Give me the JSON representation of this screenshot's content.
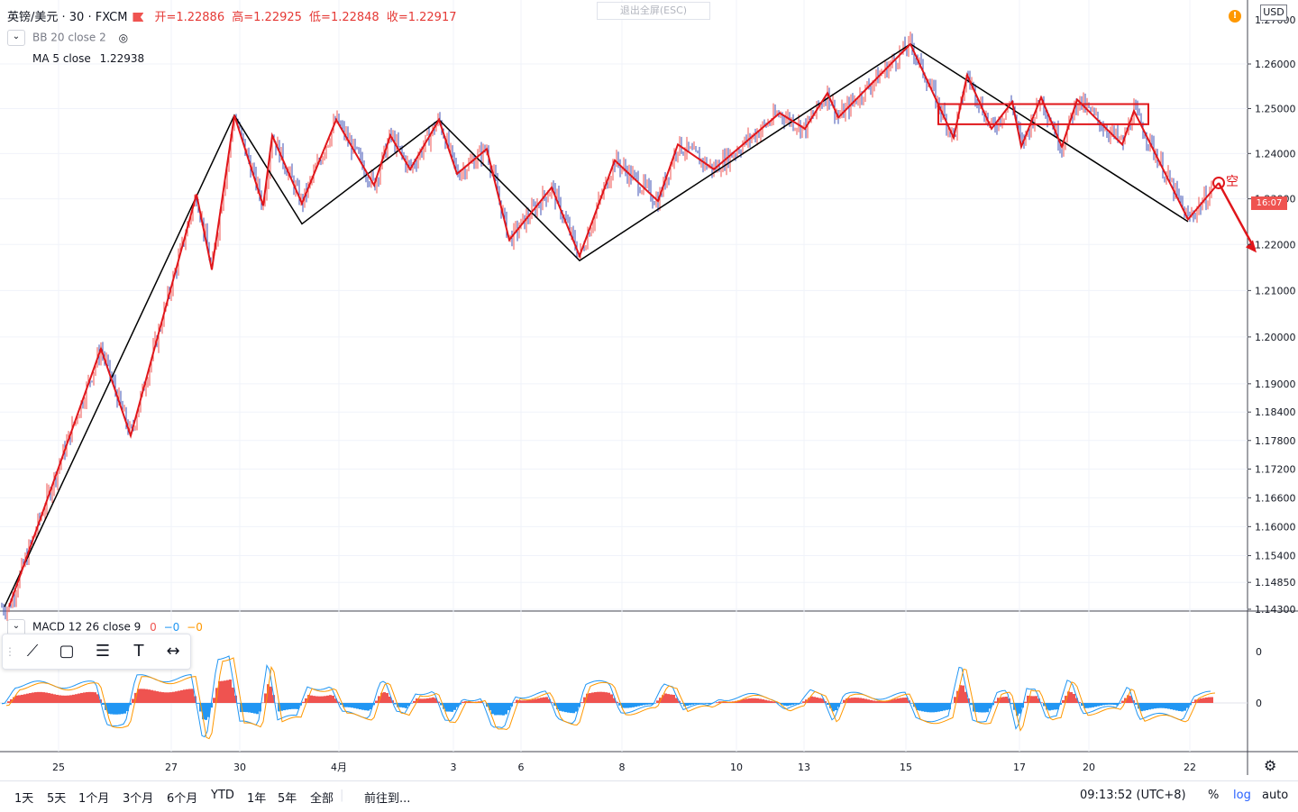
{
  "header": {
    "symbol": "英镑/美元 · 30 · FXCM",
    "ohlc": [
      "开=1.22886",
      "高=1.22925",
      "低=1.22848",
      "收=1.22917"
    ],
    "escape_label": "退出全屏(ESC)",
    "currency": "USD"
  },
  "indicators": {
    "bb_label": "BB 20 close 2",
    "ma_label": "MA 5 close",
    "ma_value": "1.22938",
    "macd_label": "MACD 12 26 close 9",
    "macd_values": [
      "0",
      "−0",
      "−0"
    ]
  },
  "colors": {
    "up": "#ef5350",
    "down": "#3f51b5",
    "black_line": "#000000",
    "red_line": "#e0161b",
    "macd_line": "#2196f3",
    "signal_line": "#ff9800"
  },
  "price_tag": "16:07",
  "annotation": "空",
  "chart_data": {
    "type": "line",
    "title": "",
    "price_axis": {
      "scale": "log",
      "ticks": [
        "1.26000",
        "1.25000",
        "1.24000",
        "1.23000",
        "1.22000",
        "1.21000",
        "1.20000",
        "1.19000",
        "1.18400",
        "1.17800",
        "1.17200",
        "1.16600",
        "1.16000",
        "1.15400",
        "1.14850",
        "1.14300"
      ],
      "partial_top_tick": "1.27000",
      "range": [
        1.143,
        1.266
      ]
    },
    "time_axis": {
      "ticks": [
        "25",
        "27",
        "30",
        "4月",
        "3",
        "6",
        "8",
        "10",
        "13",
        "15",
        "17",
        "20",
        "22"
      ],
      "range": [
        0,
        1340
      ]
    },
    "series": [
      {
        "values_x": [
          5,
          260,
          335,
          487,
          643,
          1010,
          1318
        ],
        "values_y": [
          1.1435,
          1.2485,
          1.2245,
          1.2475,
          1.2165,
          1.2645,
          1.225
        ]
      },
      {
        "values_x": [
          10,
          112,
          145,
          218,
          235,
          260,
          292,
          302,
          335,
          373,
          415,
          433,
          455,
          487,
          507,
          540,
          565,
          612,
          643,
          682,
          730,
          752,
          792,
          865,
          893,
          918,
          930,
          1010,
          1058,
          1073,
          1100,
          1123,
          1133,
          1155,
          1178,
          1195,
          1245,
          1258,
          1318,
          1352
        ],
        "values_y": [
          1.1435,
          1.1975,
          1.179,
          1.231,
          1.2145,
          1.2485,
          1.2285,
          1.244,
          1.229,
          1.2475,
          1.233,
          1.244,
          1.2365,
          1.2475,
          1.2355,
          1.241,
          1.221,
          1.2325,
          1.2175,
          1.2385,
          1.2295,
          1.242,
          1.2365,
          1.249,
          1.2455,
          1.2535,
          1.248,
          1.2645,
          1.2435,
          1.2575,
          1.2455,
          1.2515,
          1.2415,
          1.2525,
          1.2415,
          1.252,
          1.242,
          1.2495,
          1.2255,
          1.2335
        ]
      }
    ],
    "range_box": {
      "y": [
        1.2465,
        1.251
      ]
    },
    "forecast_arrow": {
      "values_y": [
        1.2335,
        1.219
      ]
    },
    "macd_axis": {
      "ticks": [
        "0",
        "0"
      ]
    },
    "grid": true
  },
  "bottom_bar": {
    "ranges": [
      "1天",
      "5天",
      "1个月",
      "3个月",
      "6个月",
      "YTD",
      "1年",
      "5年",
      "全部"
    ],
    "goto": "前往到...",
    "clock": "09:13:52 (UTC+8)",
    "percent": "%",
    "log": "log",
    "auto": "auto"
  }
}
